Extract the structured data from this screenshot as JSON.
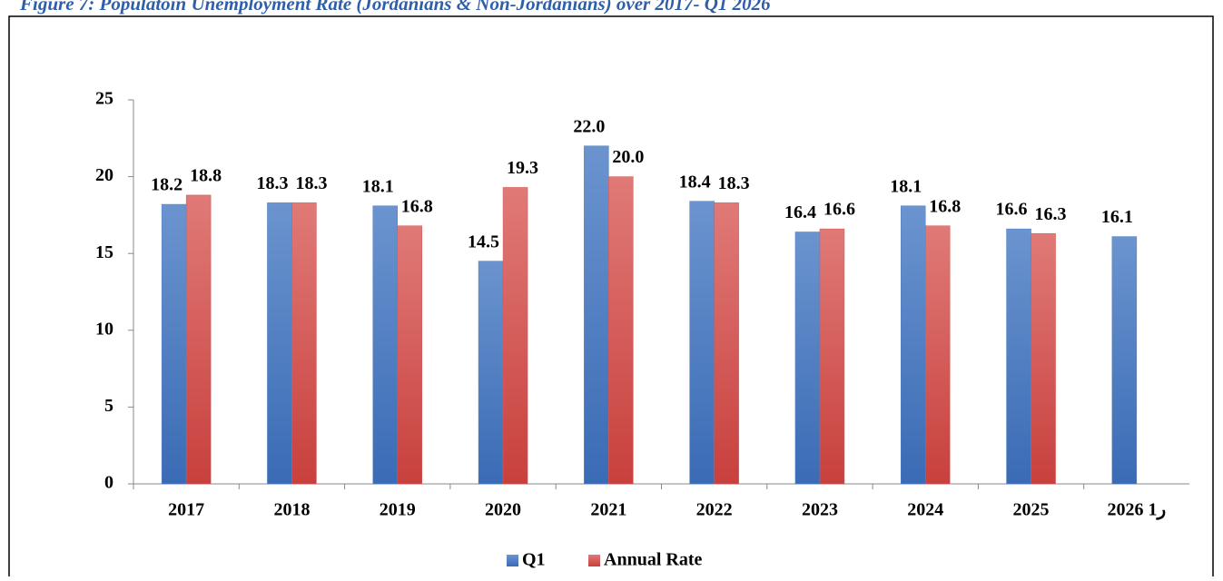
{
  "chart_data": {
    "type": "bar",
    "title": "Figure 7: Populatoin Unemployment Rate (Jordanians & Non-Jordanians) over 2017- Q1 2026",
    "categories": [
      "2017",
      "2018",
      "2019",
      "2020",
      "2021",
      "2022",
      "2023",
      "2024",
      "2025",
      "2026 ر1"
    ],
    "series": [
      {
        "name": "Q1",
        "color": "#4f7fc0",
        "values": [
          18.2,
          18.3,
          18.1,
          14.5,
          22.0,
          18.4,
          16.4,
          18.1,
          16.6,
          16.1
        ],
        "value_labels": [
          "18.2",
          "18.3",
          "18.1",
          "14.5",
          "22.0",
          "18.4",
          "16.4",
          "18.1",
          "16.6",
          "16.1"
        ]
      },
      {
        "name": "Annual Rate",
        "color": "#d05a57",
        "values": [
          18.8,
          18.3,
          16.8,
          19.3,
          20.0,
          18.3,
          16.6,
          16.8,
          16.3,
          null
        ],
        "value_labels": [
          "18.8",
          "18.3",
          "16.8",
          "19.3",
          "20.0",
          "18.3",
          "16.6",
          "16.8",
          "16.3",
          null
        ]
      }
    ],
    "ylim": [
      0,
      25
    ],
    "yticks": [
      0,
      5,
      10,
      15,
      20,
      25
    ],
    "legend": "bottom"
  }
}
